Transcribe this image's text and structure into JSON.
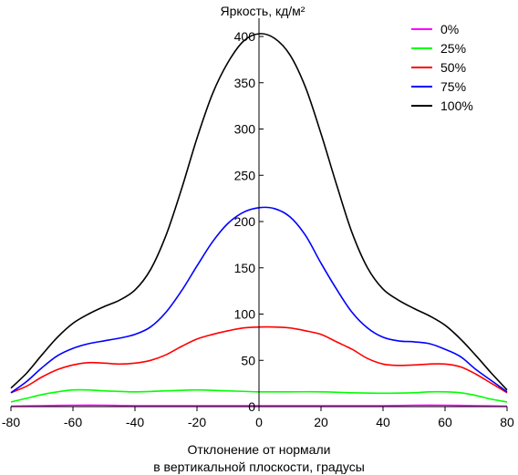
{
  "chart_data": {
    "type": "line",
    "title": "Яркость, кд/м²",
    "xlabel_lines": [
      "Отклонение от нормали",
      "в вертикальной плоскости, градусы"
    ],
    "xlim": [
      -80,
      80
    ],
    "ylim": [
      0,
      410
    ],
    "xticks": [
      -80,
      -60,
      -40,
      -20,
      0,
      20,
      40,
      60,
      80
    ],
    "yticks": [
      0,
      50,
      100,
      150,
      200,
      250,
      300,
      350,
      400
    ],
    "grid": false,
    "legend_position": "top-right",
    "series": [
      {
        "name": "0%",
        "color": "#ff00ff",
        "points": [
          [
            -80,
            0.5
          ],
          [
            -70,
            1
          ],
          [
            -60,
            1.5
          ],
          [
            -50,
            1.5
          ],
          [
            -40,
            1
          ],
          [
            -30,
            1
          ],
          [
            -20,
            1
          ],
          [
            -10,
            1
          ],
          [
            0,
            1
          ],
          [
            10,
            1
          ],
          [
            20,
            1
          ],
          [
            30,
            1
          ],
          [
            40,
            1
          ],
          [
            50,
            1.5
          ],
          [
            60,
            1.5
          ],
          [
            70,
            1
          ],
          [
            80,
            0.5
          ]
        ]
      },
      {
        "name": "25%",
        "color": "#00ff00",
        "points": [
          [
            -80,
            5
          ],
          [
            -75,
            9
          ],
          [
            -70,
            13
          ],
          [
            -65,
            16
          ],
          [
            -60,
            18
          ],
          [
            -55,
            18
          ],
          [
            -50,
            17
          ],
          [
            -45,
            16.5
          ],
          [
            -40,
            16
          ],
          [
            -30,
            17
          ],
          [
            -20,
            18
          ],
          [
            -10,
            17
          ],
          [
            0,
            16
          ],
          [
            10,
            16
          ],
          [
            20,
            16
          ],
          [
            30,
            15
          ],
          [
            40,
            14.5
          ],
          [
            50,
            15
          ],
          [
            55,
            16
          ],
          [
            60,
            16
          ],
          [
            65,
            15
          ],
          [
            70,
            12
          ],
          [
            75,
            8
          ],
          [
            80,
            5
          ]
        ]
      },
      {
        "name": "50%",
        "color": "#ff0000",
        "points": [
          [
            -80,
            15
          ],
          [
            -75,
            22
          ],
          [
            -70,
            32
          ],
          [
            -65,
            40
          ],
          [
            -60,
            45
          ],
          [
            -55,
            47.5
          ],
          [
            -50,
            47
          ],
          [
            -45,
            46
          ],
          [
            -40,
            47
          ],
          [
            -35,
            50
          ],
          [
            -30,
            56
          ],
          [
            -25,
            65
          ],
          [
            -20,
            73
          ],
          [
            -15,
            78
          ],
          [
            -10,
            82
          ],
          [
            -5,
            85
          ],
          [
            0,
            86
          ],
          [
            5,
            86
          ],
          [
            10,
            85
          ],
          [
            15,
            82
          ],
          [
            20,
            78
          ],
          [
            25,
            70
          ],
          [
            30,
            62
          ],
          [
            35,
            52
          ],
          [
            40,
            46
          ],
          [
            45,
            44.5
          ],
          [
            50,
            45
          ],
          [
            55,
            46
          ],
          [
            60,
            46
          ],
          [
            65,
            43
          ],
          [
            70,
            35
          ],
          [
            75,
            25
          ],
          [
            80,
            15
          ]
        ]
      },
      {
        "name": "75%",
        "color": "#0000ff",
        "points": [
          [
            -80,
            15
          ],
          [
            -75,
            27
          ],
          [
            -70,
            42
          ],
          [
            -65,
            55
          ],
          [
            -60,
            63
          ],
          [
            -55,
            68
          ],
          [
            -50,
            71
          ],
          [
            -45,
            74
          ],
          [
            -40,
            78
          ],
          [
            -35,
            86
          ],
          [
            -30,
            102
          ],
          [
            -25,
            125
          ],
          [
            -20,
            152
          ],
          [
            -15,
            178
          ],
          [
            -10,
            198
          ],
          [
            -5,
            210
          ],
          [
            0,
            215
          ],
          [
            5,
            214
          ],
          [
            10,
            205
          ],
          [
            15,
            185
          ],
          [
            20,
            155
          ],
          [
            25,
            127
          ],
          [
            30,
            102
          ],
          [
            35,
            85
          ],
          [
            40,
            75
          ],
          [
            45,
            71
          ],
          [
            50,
            70
          ],
          [
            55,
            68
          ],
          [
            60,
            62
          ],
          [
            65,
            54
          ],
          [
            70,
            40
          ],
          [
            75,
            28
          ],
          [
            80,
            16
          ]
        ]
      },
      {
        "name": "100%",
        "color": "#000000",
        "points": [
          [
            -80,
            20
          ],
          [
            -75,
            36
          ],
          [
            -70,
            56
          ],
          [
            -65,
            75
          ],
          [
            -60,
            90
          ],
          [
            -55,
            100
          ],
          [
            -50,
            108
          ],
          [
            -45,
            115
          ],
          [
            -40,
            126
          ],
          [
            -35,
            148
          ],
          [
            -30,
            185
          ],
          [
            -25,
            235
          ],
          [
            -20,
            290
          ],
          [
            -15,
            338
          ],
          [
            -10,
            372
          ],
          [
            -5,
            395
          ],
          [
            0,
            403
          ],
          [
            5,
            398
          ],
          [
            10,
            380
          ],
          [
            15,
            345
          ],
          [
            20,
            295
          ],
          [
            25,
            240
          ],
          [
            30,
            188
          ],
          [
            35,
            150
          ],
          [
            40,
            127
          ],
          [
            45,
            115
          ],
          [
            50,
            106
          ],
          [
            55,
            98
          ],
          [
            60,
            88
          ],
          [
            65,
            73
          ],
          [
            70,
            55
          ],
          [
            75,
            36
          ],
          [
            80,
            18
          ]
        ]
      }
    ]
  }
}
